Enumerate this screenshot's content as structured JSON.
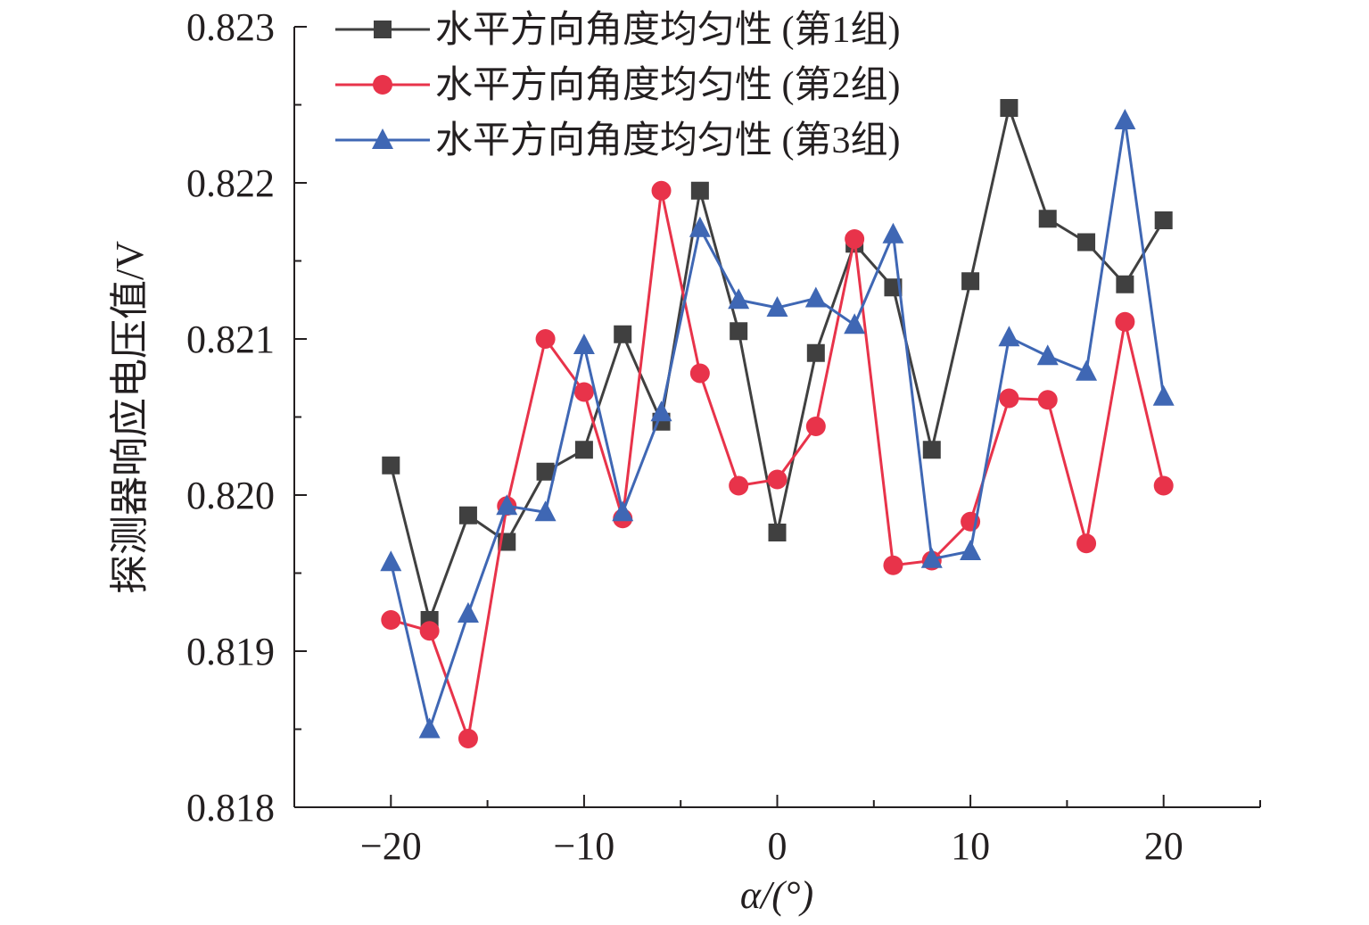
{
  "chart_data": {
    "type": "line",
    "xlabel": "α/(°)",
    "ylabel": "探测器响应电压值/V",
    "xlim": [
      -25,
      25
    ],
    "ylim": [
      0.818,
      0.823
    ],
    "xticks": [
      -20,
      -10,
      0,
      10,
      20
    ],
    "xtick_labels": [
      "−20",
      "−10",
      "0",
      "10",
      "20"
    ],
    "yticks": [
      0.818,
      0.819,
      0.82,
      0.821,
      0.822,
      0.823
    ],
    "ytick_labels": [
      "0.818",
      "0.819",
      "0.820",
      "0.821",
      "0.822",
      "0.823"
    ],
    "grid": false,
    "legend_position": "top-left",
    "x": [
      -20,
      -18,
      -16,
      -14,
      -12,
      -10,
      -8,
      -6,
      -4,
      -2,
      0,
      2,
      4,
      6,
      8,
      10,
      12,
      14,
      16,
      18,
      20
    ],
    "series": [
      {
        "name": "水平方向角度均匀性 (第1组)",
        "color": "#404040",
        "marker": "square",
        "values": [
          0.82019,
          0.8192,
          0.81987,
          0.8197,
          0.82015,
          0.82029,
          0.82103,
          0.82047,
          0.82195,
          0.82105,
          0.81976,
          0.82091,
          0.82161,
          0.82133,
          0.82029,
          0.82137,
          0.82248,
          0.82177,
          0.82162,
          0.82135,
          0.82176
        ]
      },
      {
        "name": "水平方向角度均匀性 (第2组)",
        "color": "#e8334a",
        "marker": "circle",
        "values": [
          0.8192,
          0.81913,
          0.81844,
          0.81993,
          0.821,
          0.82066,
          0.81985,
          0.82195,
          0.82078,
          0.82006,
          0.8201,
          0.82044,
          0.82164,
          0.81955,
          0.81958,
          0.81983,
          0.82062,
          0.82061,
          0.81969,
          0.82111,
          0.82006
        ]
      },
      {
        "name": "水平方向角度均匀性 (第3组)",
        "color": "#3f67b4",
        "marker": "triangle",
        "values": [
          0.81957,
          0.8185,
          0.81924,
          0.81993,
          0.81989,
          0.82096,
          0.81989,
          0.82053,
          0.82171,
          0.82125,
          0.8212,
          0.82126,
          0.82109,
          0.82167,
          0.81959,
          0.81964,
          0.82101,
          0.82089,
          0.82079,
          0.8224,
          0.82063
        ]
      }
    ]
  }
}
